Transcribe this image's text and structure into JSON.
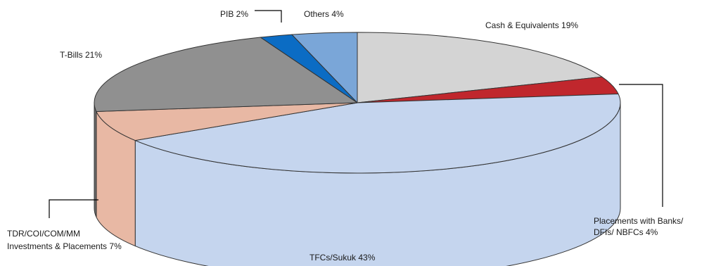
{
  "chart_data": {
    "type": "pie",
    "style": "3d-exploded",
    "title": "",
    "slices": [
      {
        "name": "Cash & Equivalents",
        "label": "Cash & Equivalents 19%",
        "value": 19,
        "color": "#d4d4d4",
        "side_color": "#aaaaaa"
      },
      {
        "name": "Placements with Banks/ DFIs/ NBFCs",
        "label_lines": [
          "Placements with Banks/",
          "DFIs/ NBFCs 4%"
        ],
        "value": 4,
        "color": "#c0272d",
        "side_color": "#8c1b20"
      },
      {
        "name": "TFCs/Sukuk",
        "label": "TFCs/Sukuk 43%",
        "value": 43,
        "color": "#c5d5ee",
        "side_color": "#c5d5ee"
      },
      {
        "name": "TDR/COI/COM/MM Investments & Placements",
        "label_lines": [
          "TDR/COI/COM/MM",
          "Investments & Placements 7%"
        ],
        "value": 7,
        "color": "#e8b8a4",
        "side_color": "#e8b8a4"
      },
      {
        "name": "T-Bills",
        "label": "T-Bills 21%",
        "value": 21,
        "color": "#909090",
        "side_color": "#6e6e6e"
      },
      {
        "name": "PIB",
        "label": "PIB 2%",
        "value": 2,
        "color": "#0b6cc4",
        "side_color": "#084f90"
      },
      {
        "name": "Others",
        "label": "Others 4%",
        "value": 4,
        "color": "#7aa6d8",
        "side_color": "#5a86b8"
      }
    ],
    "outline_color": "#333333"
  }
}
